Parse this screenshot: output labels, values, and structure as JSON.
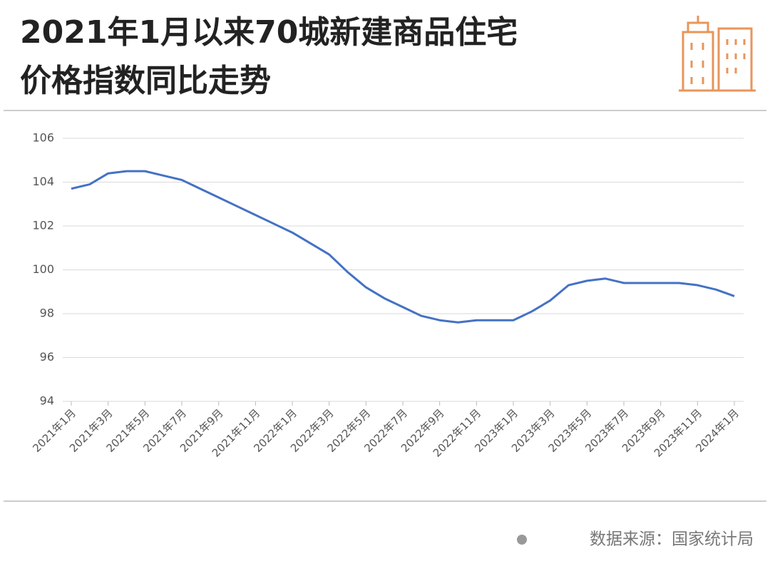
{
  "chart_data": {
    "type": "line",
    "title": [
      "2021年1月以来70城新建商品住宅",
      "价格指数同比走势"
    ],
    "source": "数据来源：国家统计局",
    "categories": [
      "2021年1月",
      null,
      "2021年3月",
      null,
      "2021年5月",
      null,
      "2021年7月",
      null,
      "2021年9月",
      null,
      "2021年11月",
      null,
      "2022年1月",
      null,
      "2022年3月",
      null,
      "2022年5月",
      null,
      "2022年7月",
      null,
      "2022年9月",
      null,
      "2022年11月",
      null,
      "2023年1月",
      null,
      "2023年3月",
      null,
      "2023年5月",
      null,
      "2023年7月",
      null,
      "2023年9月",
      null,
      "2023年11月",
      null,
      "2024年1月"
    ],
    "series": [
      {
        "color": "#4472c4",
        "values": [
          103.7,
          103.9,
          104.4,
          104.5,
          104.5,
          104.3,
          104.1,
          103.7,
          103.3,
          102.9,
          102.5,
          102.1,
          101.7,
          101.2,
          100.7,
          99.9,
          99.2,
          98.7,
          98.3,
          97.9,
          97.7,
          97.6,
          97.7,
          97.7,
          97.7,
          98.1,
          98.6,
          99.3,
          99.5,
          99.6,
          99.4,
          99.4,
          99.4,
          99.4,
          99.3,
          99.1,
          98.8
        ]
      }
    ],
    "ylim": [
      94,
      106
    ],
    "yticks": [
      94,
      96,
      98,
      100,
      102,
      104,
      106
    ],
    "grid": true
  }
}
